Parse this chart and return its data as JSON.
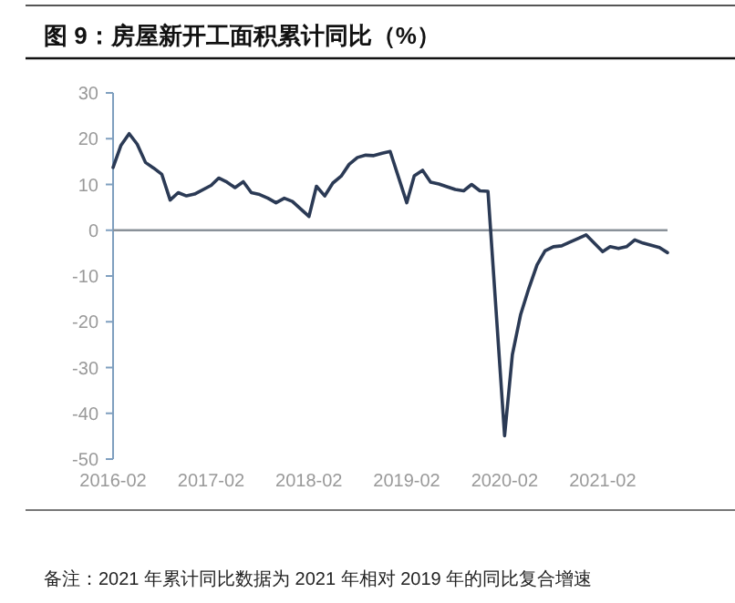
{
  "chart_data": {
    "type": "line",
    "title": "图 9：房屋新开工面积累计同比（%）",
    "x": [
      "2016-02",
      "2016-03",
      "2016-04",
      "2016-05",
      "2016-06",
      "2016-07",
      "2016-08",
      "2016-09",
      "2016-10",
      "2016-11",
      "2016-12",
      "2017-02",
      "2017-03",
      "2017-04",
      "2017-05",
      "2017-06",
      "2017-07",
      "2017-08",
      "2017-09",
      "2017-10",
      "2017-11",
      "2017-12",
      "2018-02",
      "2018-03",
      "2018-04",
      "2018-05",
      "2018-06",
      "2018-07",
      "2018-08",
      "2018-09",
      "2018-10",
      "2018-11",
      "2018-12",
      "2019-02",
      "2019-03",
      "2019-04",
      "2019-05",
      "2019-06",
      "2019-07",
      "2019-08",
      "2019-09",
      "2019-10",
      "2019-11",
      "2019-12",
      "2020-02",
      "2020-03",
      "2020-04",
      "2020-05",
      "2020-06",
      "2020-07",
      "2020-08",
      "2020-09",
      "2020-10",
      "2020-11",
      "2020-12",
      "2021-02",
      "2021-03",
      "2021-04",
      "2021-05",
      "2021-06",
      "2021-07",
      "2021-08",
      "2021-09",
      "2021-10"
    ],
    "series": [
      {
        "color": "#2b3a55",
        "values": [
          13.7,
          18.5,
          21.1,
          18.8,
          14.8,
          13.6,
          12.2,
          6.6,
          8.2,
          7.5,
          7.9,
          9.8,
          11.4,
          10.5,
          9.3,
          10.6,
          8.2,
          7.8,
          7.0,
          6.0,
          7.0,
          6.3,
          3.0,
          9.6,
          7.5,
          10.3,
          11.8,
          14.4,
          15.9,
          16.4,
          16.3,
          16.8,
          17.2,
          6.0,
          11.9,
          13.1,
          10.5,
          10.1,
          9.5,
          8.9,
          8.6,
          10.0,
          8.6,
          8.5,
          -44.9,
          -27.2,
          -18.4,
          -12.8,
          -7.6,
          -4.5,
          -3.6,
          -3.4,
          -2.6,
          -1.8,
          -1.0,
          -4.7,
          -3.6,
          -4.0,
          -3.6,
          -2.1,
          -2.8,
          -3.3,
          -3.8,
          -4.9
        ]
      }
    ],
    "xlim": [
      "2016-02",
      "2021-10"
    ],
    "xticks": [
      "2016-02",
      "2017-02",
      "2018-02",
      "2019-02",
      "2020-02",
      "2021-02"
    ],
    "ylim": [
      -50,
      30
    ],
    "yticks": [
      -50,
      -40,
      -30,
      -20,
      -10,
      0,
      10,
      20,
      30
    ],
    "ref_lines": [
      {
        "axis": "y",
        "value": 0,
        "color": "#8a9199"
      }
    ],
    "marker": "none",
    "line_style": "solid",
    "annotations": [
      "备注：2021 年累计同比数据为 2021 年相对 2019 年的同比复合增速"
    ]
  }
}
